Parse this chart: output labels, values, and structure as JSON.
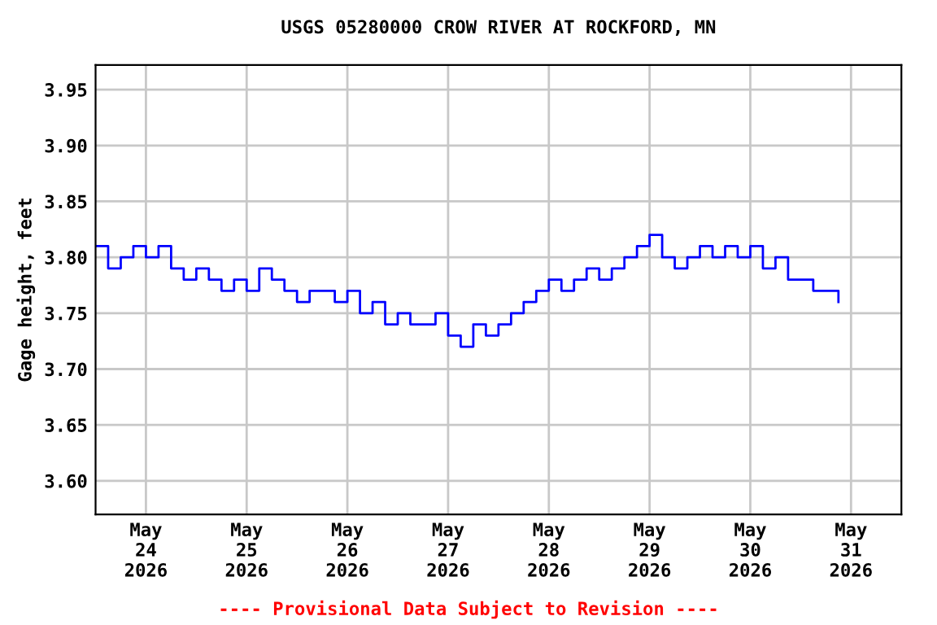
{
  "chart_data": {
    "type": "step",
    "title": "USGS 05280000 CROW RIVER AT ROCKFORD, MN",
    "ylabel": "Gage height, feet",
    "annotations": [
      "---- Provisional Data Subject to Revision ----"
    ],
    "x": [
      "2026-05-23T12:00",
      "2026-05-23T15:00",
      "2026-05-23T18:00",
      "2026-05-23T21:00",
      "2026-05-24T00:00",
      "2026-05-24T03:00",
      "2026-05-24T06:00",
      "2026-05-24T09:00",
      "2026-05-24T12:00",
      "2026-05-24T15:00",
      "2026-05-24T18:00",
      "2026-05-24T21:00",
      "2026-05-25T00:00",
      "2026-05-25T03:00",
      "2026-05-25T06:00",
      "2026-05-25T09:00",
      "2026-05-25T12:00",
      "2026-05-25T15:00",
      "2026-05-25T18:00",
      "2026-05-25T21:00",
      "2026-05-26T00:00",
      "2026-05-26T03:00",
      "2026-05-26T06:00",
      "2026-05-26T09:00",
      "2026-05-26T12:00",
      "2026-05-26T15:00",
      "2026-05-26T18:00",
      "2026-05-26T21:00",
      "2026-05-27T00:00",
      "2026-05-27T03:00",
      "2026-05-27T06:00",
      "2026-05-27T09:00",
      "2026-05-27T12:00",
      "2026-05-27T15:00",
      "2026-05-27T18:00",
      "2026-05-27T21:00",
      "2026-05-28T00:00",
      "2026-05-28T03:00",
      "2026-05-28T06:00",
      "2026-05-28T09:00",
      "2026-05-28T12:00",
      "2026-05-28T15:00",
      "2026-05-28T18:00",
      "2026-05-28T21:00",
      "2026-05-29T00:00",
      "2026-05-29T03:00",
      "2026-05-29T06:00",
      "2026-05-29T09:00",
      "2026-05-29T12:00",
      "2026-05-29T15:00",
      "2026-05-29T18:00",
      "2026-05-29T21:00",
      "2026-05-30T00:00",
      "2026-05-30T03:00",
      "2026-05-30T06:00",
      "2026-05-30T09:00",
      "2026-05-30T12:00",
      "2026-05-30T15:00",
      "2026-05-30T18:00",
      "2026-05-30T21:00"
    ],
    "series": [
      {
        "color": "#0000ff",
        "values": [
          3.81,
          3.79,
          3.8,
          3.81,
          3.8,
          3.81,
          3.79,
          3.78,
          3.79,
          3.78,
          3.77,
          3.78,
          3.77,
          3.79,
          3.78,
          3.77,
          3.76,
          3.77,
          3.77,
          3.76,
          3.77,
          3.75,
          3.76,
          3.74,
          3.75,
          3.74,
          3.74,
          3.75,
          3.73,
          3.72,
          3.74,
          3.73,
          3.74,
          3.75,
          3.76,
          3.77,
          3.78,
          3.77,
          3.78,
          3.79,
          3.78,
          3.79,
          3.8,
          3.81,
          3.82,
          3.8,
          3.79,
          3.8,
          3.81,
          3.8,
          3.81,
          3.8,
          3.81,
          3.79,
          3.8,
          3.78,
          3.78,
          3.77,
          3.77,
          3.76
        ]
      }
    ],
    "xlim": [
      "2026-05-23T12:00",
      "2026-05-31T12:00"
    ],
    "xticks": [
      {
        "value": "2026-05-24",
        "label": "May\n24\n2026"
      },
      {
        "value": "2026-05-25",
        "label": "May\n25\n2026"
      },
      {
        "value": "2026-05-26",
        "label": "May\n26\n2026"
      },
      {
        "value": "2026-05-27",
        "label": "May\n27\n2026"
      },
      {
        "value": "2026-05-28",
        "label": "May\n28\n2026"
      },
      {
        "value": "2026-05-29",
        "label": "May\n29\n2026"
      },
      {
        "value": "2026-05-30",
        "label": "May\n30\n2026"
      },
      {
        "value": "2026-05-31",
        "label": "May\n31\n2026"
      }
    ],
    "ylim": [
      3.57,
      3.972
    ],
    "yticks": [
      {
        "value": 3.6,
        "label": "3.60"
      },
      {
        "value": 3.65,
        "label": "3.65"
      },
      {
        "value": 3.7,
        "label": "3.70"
      },
      {
        "value": 3.75,
        "label": "3.75"
      },
      {
        "value": 3.8,
        "label": "3.80"
      },
      {
        "value": 3.85,
        "label": "3.85"
      },
      {
        "value": 3.9,
        "label": "3.90"
      },
      {
        "value": 3.95,
        "label": "3.95"
      }
    ],
    "grid": true,
    "legend": false
  }
}
